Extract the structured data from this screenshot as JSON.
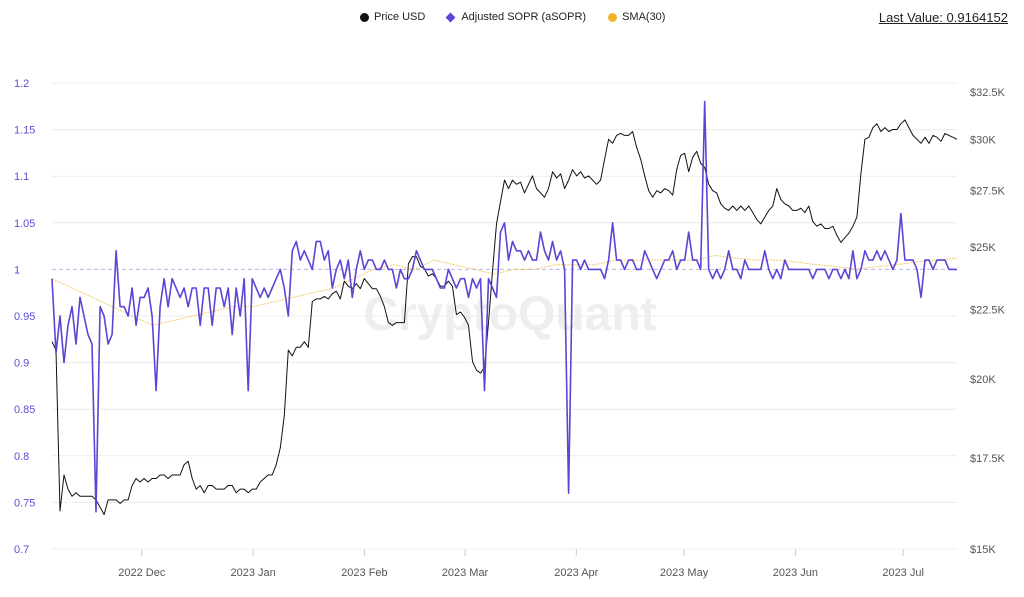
{
  "legend": [
    {
      "label": "Price USD",
      "color": "#111111",
      "marker": "circle"
    },
    {
      "label": "Adjusted SOPR (aSOPR)",
      "color": "#5b45d6",
      "marker": "diamond"
    },
    {
      "label": "SMA(30)",
      "color": "#f0b429",
      "marker": "circle"
    }
  ],
  "last_value": "Last Value: 0.9164152",
  "watermark": "CryptoQuant",
  "chart_data": {
    "type": "line",
    "x_range": [
      "2022-11-06",
      "2023-07-16"
    ],
    "x_ticks": [
      {
        "label": "2022 Dec",
        "date": "2022-12-01"
      },
      {
        "label": "2023 Jan",
        "date": "2023-01-01"
      },
      {
        "label": "2023 Feb",
        "date": "2023-02-01"
      },
      {
        "label": "2023 Mar",
        "date": "2023-03-01"
      },
      {
        "label": "2023 Apr",
        "date": "2023-04-01"
      },
      {
        "label": "2023 May",
        "date": "2023-05-01"
      },
      {
        "label": "2023 Jun",
        "date": "2023-06-01"
      },
      {
        "label": "2023 Jul",
        "date": "2023-07-01"
      }
    ],
    "y_left": {
      "range": [
        0.7,
        1.2
      ],
      "ticks": [
        "0.7",
        "0.75",
        "0.8",
        "0.85",
        "0.9",
        "0.95",
        "1",
        "1.05",
        "1.1",
        "1.15",
        "1.2"
      ],
      "reference_line": 1
    },
    "y_right": {
      "scale": "log",
      "range": [
        15,
        32.5
      ],
      "unit": "K USD",
      "ticks": [
        {
          "v": 15,
          "label": "$15K"
        },
        {
          "v": 17.5,
          "label": "$17.5K"
        },
        {
          "v": 20,
          "label": "$20K"
        },
        {
          "v": 22.5,
          "label": "$22.5K"
        },
        {
          "v": 25,
          "label": "$25K"
        },
        {
          "v": 27.5,
          "label": "$27.5K"
        },
        {
          "v": 30,
          "label": "$30K"
        },
        {
          "v": 32.5,
          "label": "$32.5K"
        }
      ]
    },
    "grid": true,
    "legend_position": "top-center",
    "series": [
      {
        "name": "Adjusted SOPR (aSOPR)",
        "axis": "left",
        "color": "#5b45d6",
        "values": [
          0.99,
          0.91,
          0.95,
          0.9,
          0.94,
          0.96,
          0.92,
          0.97,
          0.95,
          0.93,
          0.92,
          0.74,
          0.96,
          0.95,
          0.92,
          0.93,
          1.02,
          0.96,
          0.96,
          0.95,
          0.98,
          0.94,
          0.97,
          0.97,
          0.98,
          0.95,
          0.87,
          0.96,
          0.99,
          0.96,
          0.99,
          0.98,
          0.97,
          0.98,
          0.96,
          0.98,
          0.98,
          0.94,
          0.98,
          0.98,
          0.94,
          0.98,
          0.98,
          0.96,
          0.98,
          0.93,
          0.98,
          0.95,
          0.99,
          0.87,
          0.99,
          0.98,
          0.97,
          0.98,
          0.97,
          0.98,
          0.99,
          1.0,
          0.98,
          0.95,
          1.02,
          1.03,
          1.01,
          1.02,
          1.01,
          1.0,
          1.03,
          1.03,
          1.01,
          1.02,
          0.98,
          1.0,
          1.01,
          0.99,
          1.01,
          0.97,
          1.0,
          1.02,
          1.0,
          1.01,
          1.01,
          1.0,
          1.0,
          1.01,
          1.0,
          1.0,
          0.98,
          1.0,
          0.99,
          0.99,
          1.0,
          1.02,
          1.01,
          1.0,
          1.0,
          1.0,
          0.99,
          0.98,
          0.98,
          1.0,
          0.99,
          0.98,
          0.99,
          0.99,
          0.97,
          0.99,
          0.98,
          0.99,
          0.87,
          0.99,
          0.98,
          0.97,
          1.04,
          1.05,
          1.01,
          1.03,
          1.02,
          1.02,
          1.01,
          1.02,
          1.01,
          1.01,
          1.04,
          1.02,
          1.01,
          1.03,
          1.01,
          1.02,
          1.0,
          0.76,
          1.01,
          1.01,
          1.0,
          1.01,
          1.0,
          1.0,
          1.0,
          1.0,
          0.99,
          1.01,
          1.05,
          1.01,
          1.01,
          1.0,
          1.01,
          1.01,
          1.0,
          1.0,
          1.02,
          1.01,
          1.0,
          0.99,
          1.0,
          1.01,
          1.01,
          1.02,
          1.0,
          1.01,
          1.01,
          1.04,
          1.01,
          1.01,
          1.0,
          1.18,
          1.0,
          0.99,
          1.0,
          0.99,
          1.0,
          1.02,
          1.0,
          1.0,
          0.99,
          1.01,
          1.0,
          1.0,
          1.0,
          1.0,
          1.02,
          1.0,
          0.99,
          1.0,
          0.99,
          1.01,
          1.0,
          1.0,
          1.0,
          1.0,
          1.0,
          1.0,
          0.99,
          1.0,
          1.0,
          1.0,
          0.99,
          1.0,
          1.0,
          0.99,
          1.0,
          0.99,
          1.02,
          0.99,
          1.0,
          1.02,
          1.01,
          1.01,
          1.02,
          1.01,
          1.02,
          1.01,
          1.0,
          1.01,
          1.06,
          1.01,
          1.01,
          1.01,
          1.0,
          0.97,
          1.01,
          1.01,
          1.0,
          1.01,
          1.01,
          1.01,
          1.0,
          1.0,
          1.0
        ]
      },
      {
        "name": "Price USD",
        "axis": "right",
        "unit": "K USD",
        "color": "#111111",
        "values": [
          21.3,
          21.0,
          16.0,
          17.0,
          16.6,
          16.4,
          16.5,
          16.4,
          16.4,
          16.4,
          16.4,
          16.3,
          16.1,
          15.9,
          16.3,
          16.3,
          16.3,
          16.2,
          16.3,
          16.3,
          16.7,
          16.9,
          16.8,
          16.9,
          16.8,
          16.9,
          16.9,
          17.0,
          17.0,
          16.9,
          17.0,
          17.0,
          17.0,
          17.3,
          17.4,
          16.9,
          16.6,
          16.7,
          16.5,
          16.7,
          16.7,
          16.6,
          16.6,
          16.6,
          16.7,
          16.7,
          16.5,
          16.6,
          16.6,
          16.5,
          16.6,
          16.6,
          16.8,
          16.9,
          17.0,
          17.0,
          17.3,
          17.8,
          18.8,
          21.0,
          20.8,
          21.1,
          21.1,
          21.3,
          21.1,
          22.8,
          22.9,
          22.9,
          23.0,
          22.9,
          23.1,
          23.2,
          22.9,
          23.6,
          23.4,
          23.3,
          23.5,
          23.3,
          23.7,
          23.5,
          23.3,
          23.3,
          23.0,
          22.6,
          22.0,
          21.9,
          22.0,
          22.0,
          22.0,
          24.3,
          24.6,
          24.6,
          24.2,
          24.1,
          23.8,
          23.9,
          23.7,
          23.4,
          23.4,
          23.6,
          23.4,
          22.3,
          22.4,
          22.2,
          21.9,
          20.6,
          20.3,
          20.2,
          20.4,
          22.0,
          24.0,
          26.0,
          27.0,
          28.0,
          27.6,
          28.0,
          27.8,
          27.9,
          27.4,
          27.8,
          28.2,
          27.6,
          27.4,
          27.2,
          27.6,
          28.4,
          28.1,
          28.3,
          27.6,
          28.0,
          28.5,
          28.2,
          28.4,
          28.1,
          28.2,
          28.0,
          27.8,
          28.0,
          29.0,
          30.0,
          29.8,
          30.2,
          30.3,
          30.2,
          30.2,
          30.4,
          29.6,
          29.0,
          28.2,
          27.5,
          27.2,
          27.5,
          27.4,
          27.6,
          27.5,
          27.3,
          28.5,
          29.2,
          29.3,
          28.4,
          29.1,
          29.4,
          28.8,
          28.6,
          27.8,
          27.5,
          27.4,
          26.9,
          26.7,
          26.6,
          26.8,
          26.6,
          26.8,
          26.6,
          26.8,
          26.5,
          26.2,
          26.0,
          26.3,
          26.6,
          26.8,
          27.6,
          27.1,
          26.9,
          26.8,
          26.6,
          26.6,
          26.7,
          26.5,
          26.8,
          26.1,
          25.9,
          26.0,
          25.8,
          25.8,
          25.9,
          25.5,
          25.2,
          25.4,
          25.6,
          25.9,
          26.3,
          28.3,
          30.0,
          30.1,
          30.6,
          30.8,
          30.4,
          30.6,
          30.4,
          30.5,
          30.5,
          30.8,
          31.0,
          30.6,
          30.2,
          30.0,
          29.8,
          30.1,
          29.8,
          30.2,
          30.1,
          29.9,
          30.3,
          30.2,
          30.1,
          30.0
        ]
      },
      {
        "name": "SMA(30)",
        "axis": "left",
        "color": "#f0b429",
        "values": [
          0.99,
          0.98,
          0.97,
          0.96,
          0.95,
          0.94,
          0.945,
          0.95,
          0.955,
          0.96,
          0.96,
          0.965,
          0.97,
          0.975,
          0.98,
          0.99,
          1.0,
          1.005,
          1.0,
          1.01,
          1.005,
          1.0,
          0.995,
          1.0,
          1.0,
          1.005,
          1.005,
          1.005,
          1.01,
          1.01,
          1.01,
          1.01,
          1.01,
          1.015,
          1.012,
          1.01,
          1.01,
          1.008,
          1.005,
          1.003,
          1.0,
          1.003,
          1.005,
          1.008,
          1.01,
          1.012
        ]
      }
    ]
  }
}
